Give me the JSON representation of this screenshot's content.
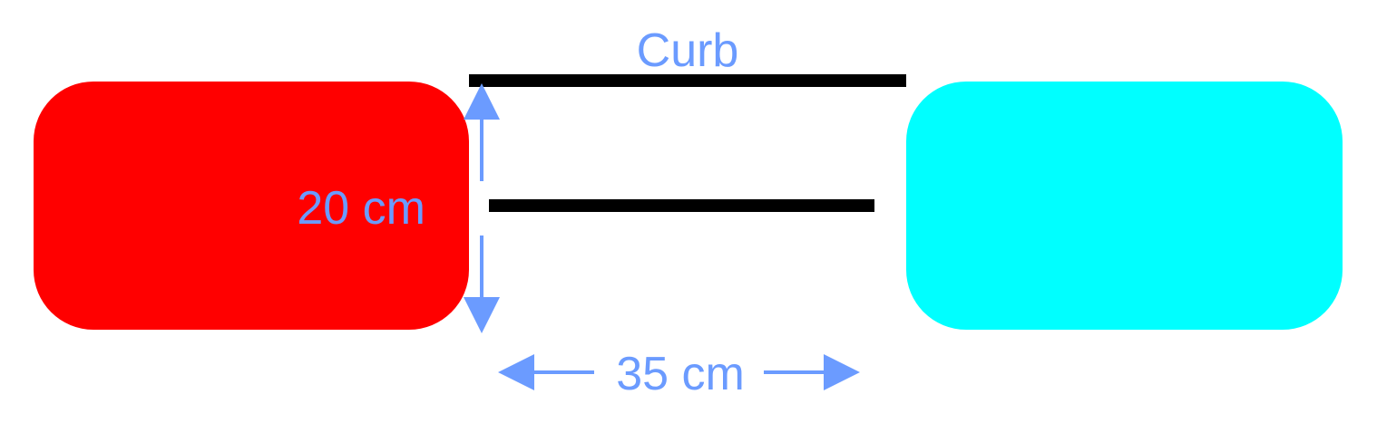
{
  "labels": {
    "curb": "Curb",
    "vertical_gap": "20 cm",
    "horizontal_gap": "35 cm"
  },
  "colors": {
    "left_car": "#ff0000",
    "right_car": "#00ffff",
    "annotation": "#6b9bff",
    "curb_line": "#000000"
  }
}
